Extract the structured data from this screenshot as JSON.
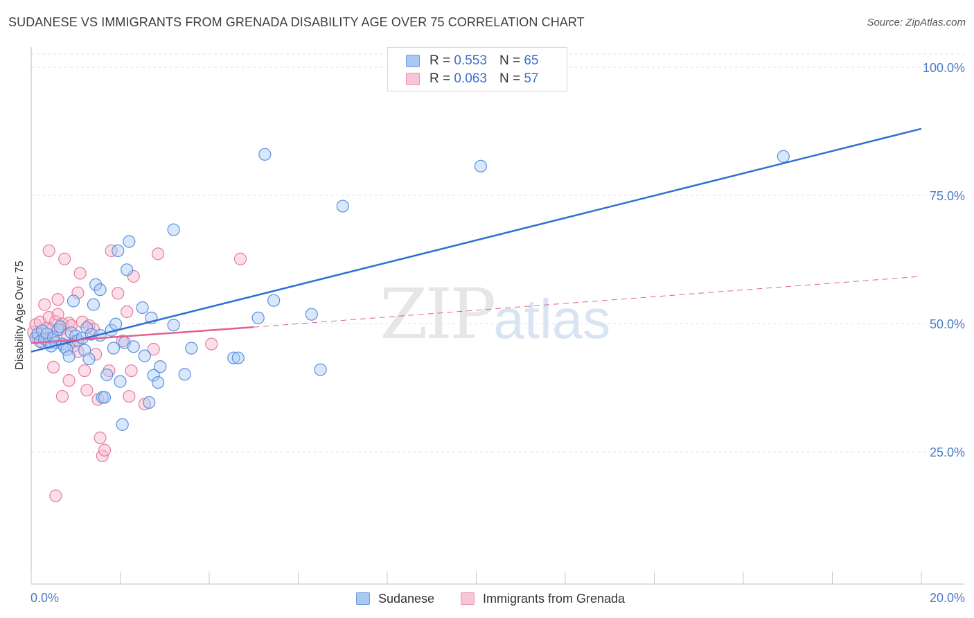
{
  "title": "SUDANESE VS IMMIGRANTS FROM GRENADA DISABILITY AGE OVER 75 CORRELATION CHART",
  "source": "Source: ZipAtlas.com",
  "watermark": {
    "zip": "ZIP",
    "atlas": "atlas"
  },
  "legend": {
    "rows": [
      {
        "r_label": "R =",
        "r_value": "0.553",
        "n_label": "N =",
        "n_value": "65",
        "color": "#a9c9f5"
      },
      {
        "r_label": "R =",
        "r_value": "0.063",
        "n_label": "N =",
        "n_value": "57",
        "color": "#f5b8cc"
      }
    ]
  },
  "bottom_legend": [
    {
      "label": "Sudanese",
      "color": "#a9c9f5"
    },
    {
      "label": "Immigrants from Grenada",
      "color": "#f5b8cc"
    }
  ],
  "chart_data": {
    "type": "scatter",
    "ylabel": "Disability Age Over 75",
    "xlim": [
      0,
      20
    ],
    "ylim": [
      0,
      105
    ],
    "x_tick_labels": [
      "0.0%",
      "20.0%"
    ],
    "y_ticks": [
      {
        "value": 25,
        "label": "25.0%"
      },
      {
        "value": 50,
        "label": "50.0%"
      },
      {
        "value": 75,
        "label": "75.0%"
      },
      {
        "value": 100,
        "label": "100.0%"
      }
    ],
    "grid": true,
    "series": [
      {
        "name": "Sudanese",
        "color": "#5b8fe0",
        "fill": "#a9c9f5",
        "trend": {
          "x": [
            0,
            20
          ],
          "y": [
            44.5,
            88.0
          ],
          "style": "solid",
          "line_color": "#2f6fd0"
        },
        "points": [
          [
            0.1,
            47.2
          ],
          [
            0.15,
            48.0
          ],
          [
            0.2,
            46.5
          ],
          [
            0.25,
            48.6
          ],
          [
            0.3,
            47.0
          ],
          [
            0.35,
            48.0
          ],
          [
            0.4,
            46.2
          ],
          [
            0.45,
            45.6
          ],
          [
            0.5,
            47.3
          ],
          [
            0.55,
            46.3
          ],
          [
            0.6,
            48.8
          ],
          [
            0.65,
            49.4
          ],
          [
            0.7,
            46.0
          ],
          [
            0.75,
            45.4
          ],
          [
            0.8,
            44.9
          ],
          [
            0.85,
            43.6
          ],
          [
            0.9,
            48.2
          ],
          [
            0.95,
            54.4
          ],
          [
            1.0,
            47.6
          ],
          [
            1.05,
            46.7
          ],
          [
            1.15,
            47.2
          ],
          [
            1.2,
            44.8
          ],
          [
            1.25,
            49.2
          ],
          [
            1.3,
            43.1
          ],
          [
            1.35,
            47.9
          ],
          [
            1.4,
            53.7
          ],
          [
            1.45,
            57.6
          ],
          [
            1.55,
            56.6
          ],
          [
            1.55,
            47.7
          ],
          [
            1.6,
            35.6
          ],
          [
            1.65,
            35.6
          ],
          [
            1.7,
            40.0
          ],
          [
            1.8,
            48.7
          ],
          [
            1.85,
            45.2
          ],
          [
            1.9,
            49.9
          ],
          [
            1.95,
            64.2
          ],
          [
            2.0,
            38.7
          ],
          [
            2.05,
            30.3
          ],
          [
            2.1,
            46.3
          ],
          [
            2.15,
            60.5
          ],
          [
            2.2,
            66.0
          ],
          [
            2.3,
            45.5
          ],
          [
            2.5,
            53.1
          ],
          [
            2.55,
            43.7
          ],
          [
            2.65,
            34.6
          ],
          [
            2.7,
            51.1
          ],
          [
            2.75,
            39.9
          ],
          [
            2.85,
            38.5
          ],
          [
            2.9,
            41.6
          ],
          [
            3.2,
            49.7
          ],
          [
            3.2,
            68.3
          ],
          [
            3.45,
            40.1
          ],
          [
            3.6,
            45.2
          ],
          [
            4.55,
            43.3
          ],
          [
            4.65,
            43.3
          ],
          [
            5.1,
            51.1
          ],
          [
            5.25,
            83.0
          ],
          [
            5.45,
            54.5
          ],
          [
            6.3,
            51.8
          ],
          [
            6.5,
            41.0
          ],
          [
            7.0,
            72.9
          ],
          [
            10.1,
            80.7
          ],
          [
            16.9,
            82.6
          ]
        ]
      },
      {
        "name": "Immigrants from Grenada",
        "color": "#e87aa0",
        "fill": "#f5b8cc",
        "trend": {
          "x": [
            0,
            5.0,
            20
          ],
          "y": [
            46.2,
            49.3,
            59.2
          ],
          "style": "solid-then-dashed",
          "line_color": "#e0608f"
        },
        "points": [
          [
            0.05,
            48.3
          ],
          [
            0.1,
            49.8
          ],
          [
            0.15,
            47.2
          ],
          [
            0.2,
            50.3
          ],
          [
            0.25,
            46.3
          ],
          [
            0.3,
            53.7
          ],
          [
            0.35,
            49.1
          ],
          [
            0.4,
            51.2
          ],
          [
            0.4,
            64.2
          ],
          [
            0.45,
            48.8
          ],
          [
            0.5,
            47.0
          ],
          [
            0.5,
            41.5
          ],
          [
            0.55,
            50.4
          ],
          [
            0.6,
            51.8
          ],
          [
            0.6,
            54.7
          ],
          [
            0.65,
            48.8
          ],
          [
            0.7,
            35.8
          ],
          [
            0.7,
            49.9
          ],
          [
            0.75,
            62.6
          ],
          [
            0.8,
            47.9
          ],
          [
            0.85,
            50.1
          ],
          [
            0.85,
            38.9
          ],
          [
            0.9,
            49.6
          ],
          [
            0.95,
            45.6
          ],
          [
            1.0,
            46.6
          ],
          [
            1.05,
            44.5
          ],
          [
            1.05,
            56.0
          ],
          [
            1.1,
            59.8
          ],
          [
            1.15,
            50.3
          ],
          [
            1.2,
            40.8
          ],
          [
            1.25,
            37.0
          ],
          [
            1.3,
            49.6
          ],
          [
            1.4,
            48.9
          ],
          [
            1.45,
            44.0
          ],
          [
            1.5,
            35.2
          ],
          [
            1.55,
            27.7
          ],
          [
            1.6,
            24.2
          ],
          [
            1.65,
            25.3
          ],
          [
            1.75,
            40.8
          ],
          [
            1.8,
            64.2
          ],
          [
            1.95,
            55.9
          ],
          [
            2.05,
            46.6
          ],
          [
            2.15,
            52.3
          ],
          [
            2.2,
            35.8
          ],
          [
            2.25,
            40.8
          ],
          [
            2.3,
            59.2
          ],
          [
            2.55,
            34.3
          ],
          [
            2.75,
            45.0
          ],
          [
            2.85,
            63.6
          ],
          [
            4.05,
            46.0
          ],
          [
            4.7,
            62.6
          ],
          [
            0.55,
            16.4
          ]
        ]
      }
    ]
  }
}
